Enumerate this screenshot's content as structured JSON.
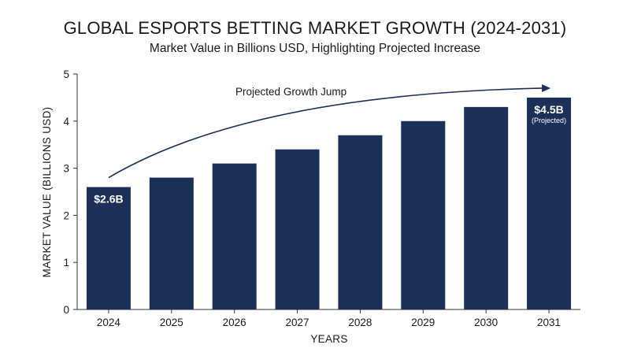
{
  "chart_data": {
    "type": "bar",
    "title": "GLOBAL ESPORTS BETTING MARKET GROWTH (2024-2031)",
    "subtitle": "Market Value in Billions USD, Highlighting Projected Increase",
    "xlabel": "YEARS",
    "ylabel": "MARKET VALUE (BILLIONS USD)",
    "categories": [
      "2024",
      "2025",
      "2026",
      "2027",
      "2028",
      "2029",
      "2030",
      "2031"
    ],
    "values": [
      2.6,
      2.8,
      3.1,
      3.4,
      3.7,
      4.0,
      4.3,
      4.5
    ],
    "ylim": [
      0,
      5
    ],
    "yticks": [
      "0",
      "1",
      "2",
      "3",
      "4",
      "5"
    ],
    "grid": false,
    "bar_color": "#1b2f57",
    "data_labels": [
      {
        "category": "2024",
        "text": "$2.6B",
        "note": ""
      },
      {
        "category": "2031",
        "text": "$4.5B",
        "note": "(Projected)"
      }
    ],
    "annotation": {
      "text": "Projected Growth Jump",
      "from": "2024",
      "to": "2031",
      "y_start": 2.8,
      "y_end": 4.7
    }
  }
}
